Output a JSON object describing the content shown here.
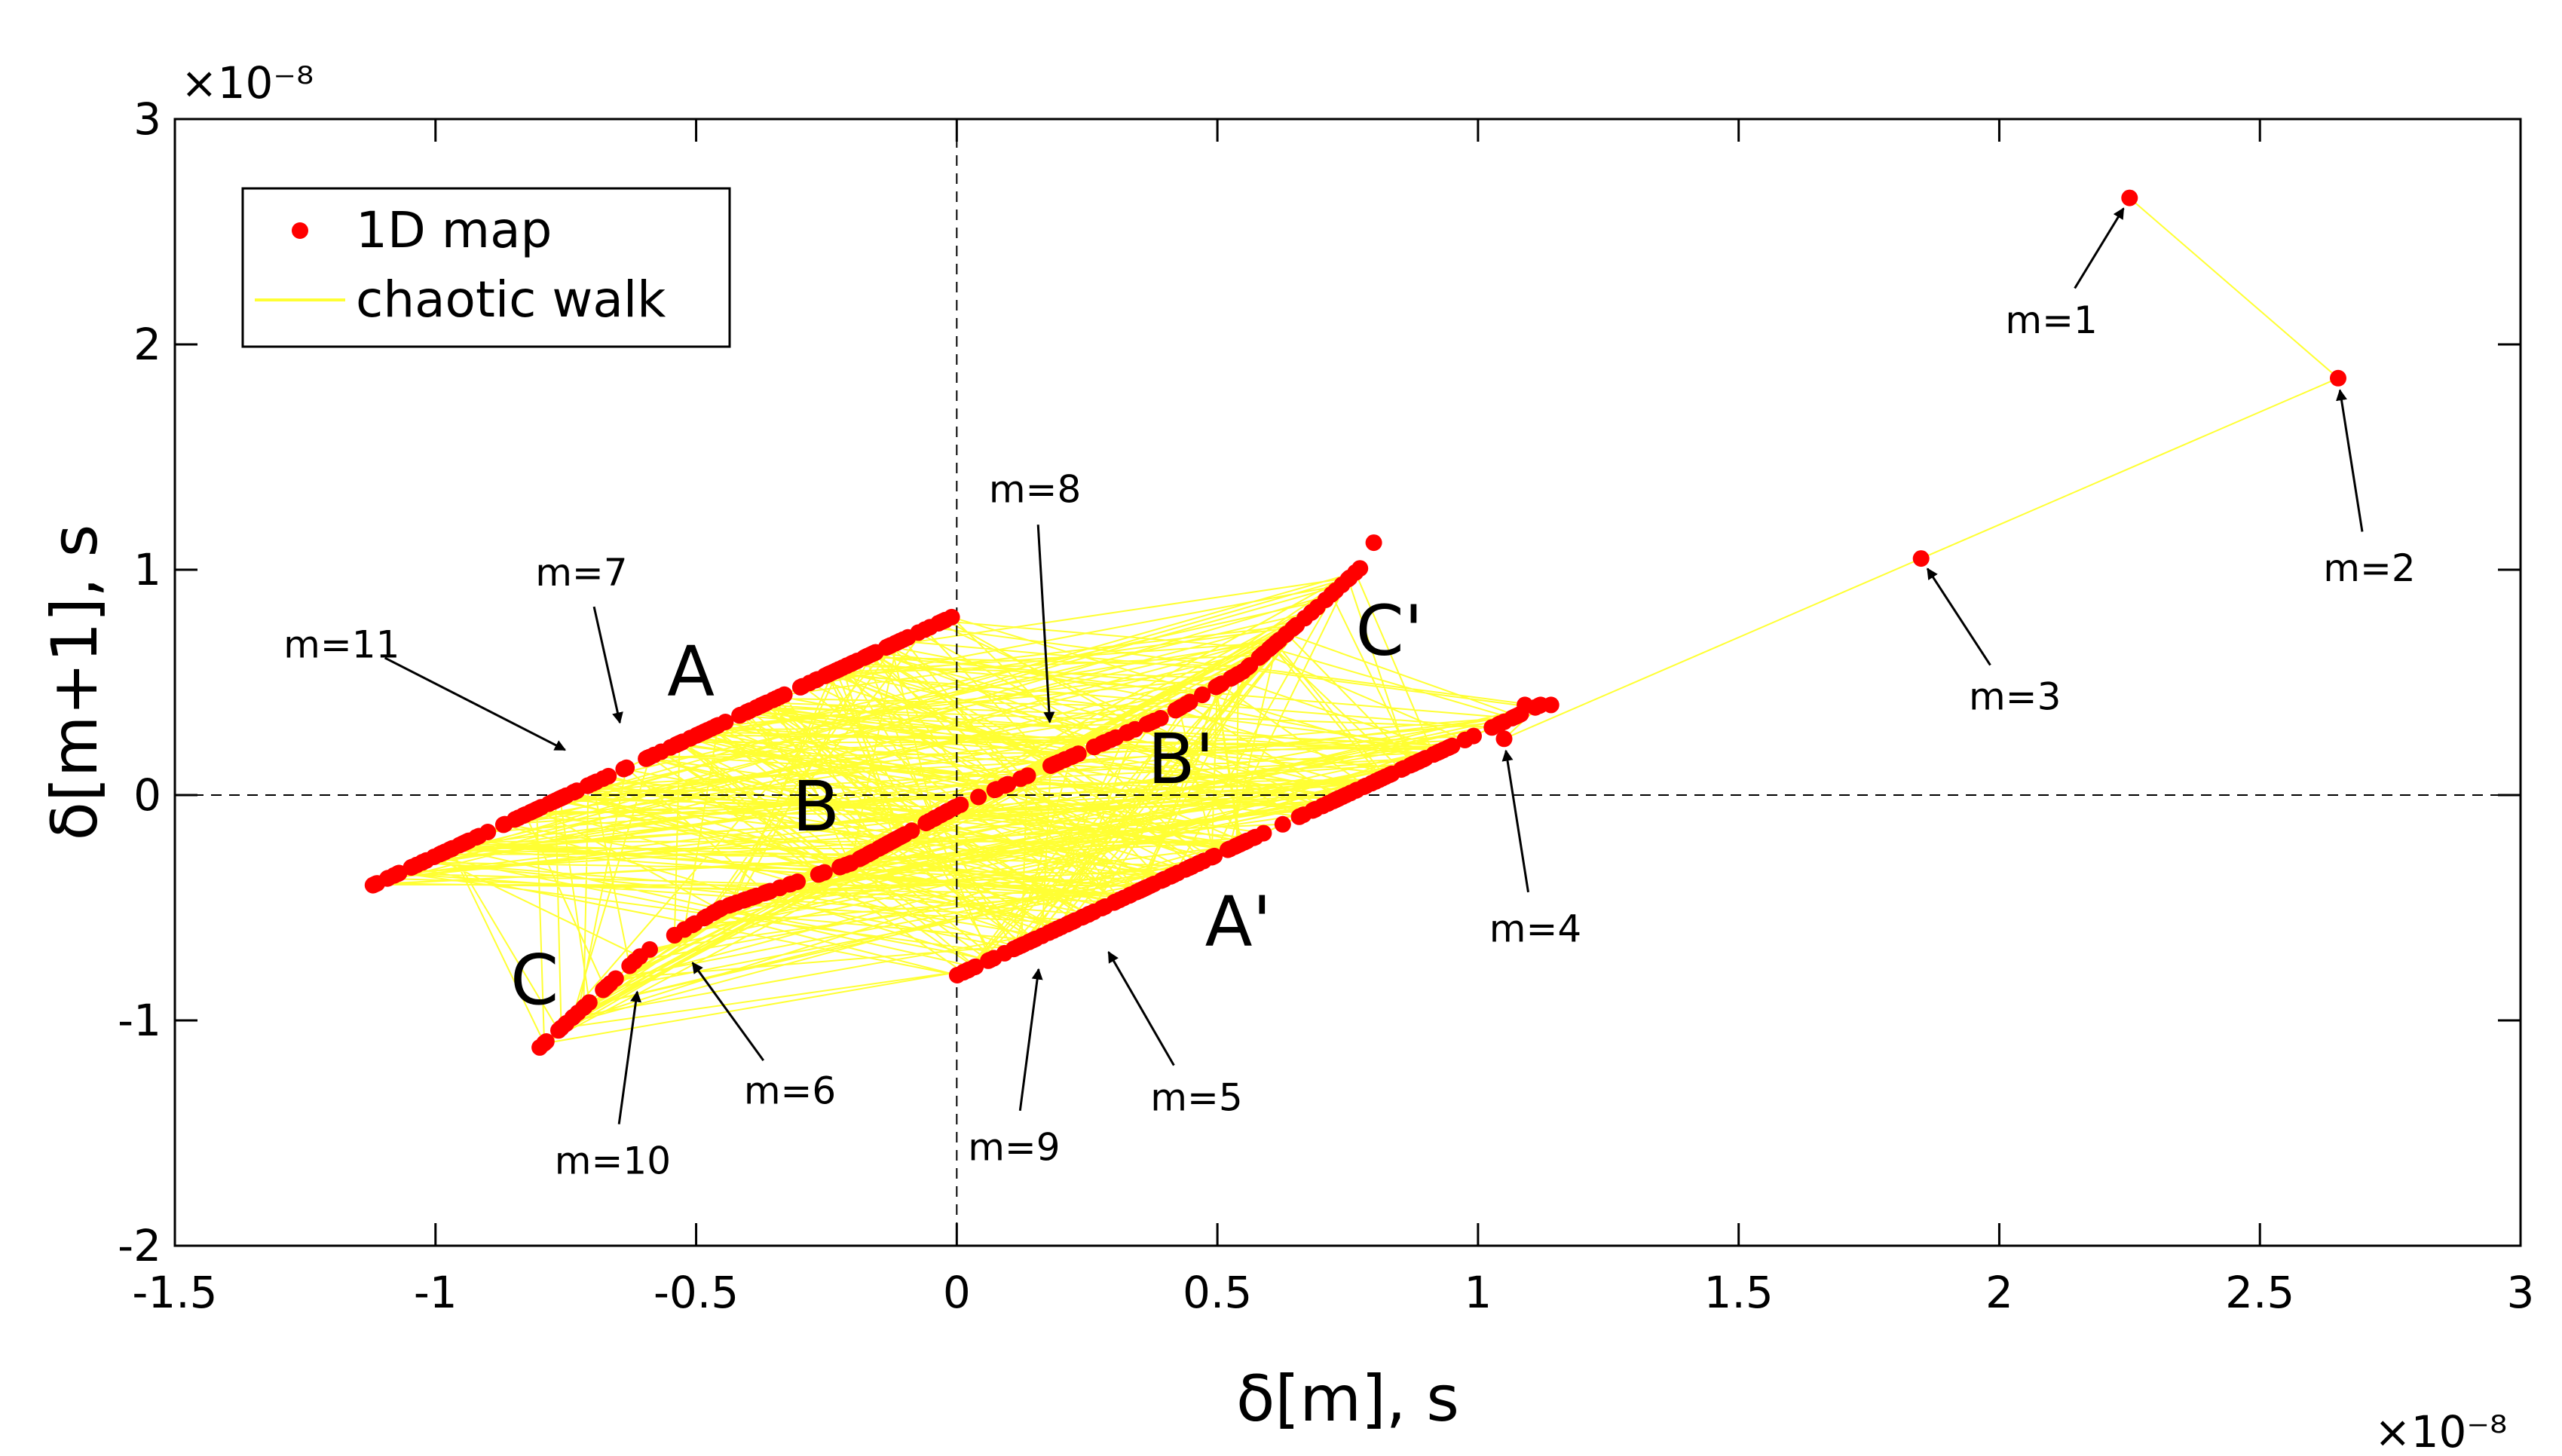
{
  "chart_data": {
    "type": "scatter",
    "xlabel": "δ[m], s",
    "ylabel": "δ[m+1], s",
    "x_exponent_label": "×10⁻⁸",
    "y_exponent_label": "×10⁻⁸",
    "xlim": [
      -1.5,
      3
    ],
    "ylim": [
      -2,
      3
    ],
    "xticks": [
      -1.5,
      -1,
      -0.5,
      0,
      0.5,
      1,
      1.5,
      2,
      2.5,
      3
    ],
    "yticks": [
      -2,
      -1,
      0,
      1,
      2,
      3
    ],
    "xtick_labels": [
      "-1.5",
      "-1",
      "-0.5",
      "0",
      "0.5",
      "1",
      "1.5",
      "2",
      "2.5",
      "3"
    ],
    "ytick_labels": [
      "-2",
      "-1",
      "0",
      "1",
      "2",
      "3"
    ],
    "units_scale": 1e-08,
    "legend": {
      "placement": "top-left",
      "entries": [
        {
          "label": "1D map",
          "color": "#ff0000",
          "marker": "dot"
        },
        {
          "label": "chaotic walk",
          "color": "#ffff33",
          "marker": "line"
        }
      ]
    },
    "guides": {
      "x_zero": true,
      "y_zero": true,
      "style": "dashed"
    },
    "branches": [
      {
        "name": "A",
        "x_range": [
          -1.12,
          0.0
        ],
        "y_start": -0.4,
        "y_end": 0.8,
        "shape": "linear"
      },
      {
        "name": "B",
        "x_range": [
          -0.8,
          0.78
        ],
        "shape": "s-curve",
        "points": [
          [
            -0.8,
            -1.12
          ],
          [
            -0.6,
            -0.7
          ],
          [
            -0.45,
            -0.5
          ],
          [
            -0.2,
            -0.3
          ],
          [
            0.0,
            -0.05
          ],
          [
            0.2,
            0.15
          ],
          [
            0.4,
            0.35
          ],
          [
            0.55,
            0.55
          ],
          [
            0.7,
            0.85
          ],
          [
            0.78,
            1.02
          ]
        ]
      },
      {
        "name": "A'",
        "x_range": [
          0.0,
          1.12
        ],
        "y_start": -0.8,
        "y_end": 0.4,
        "shape": "linear"
      }
    ],
    "transient": [
      [
        2.25,
        2.65
      ],
      [
        2.65,
        1.85
      ],
      [
        1.85,
        1.05
      ],
      [
        1.05,
        0.25
      ],
      [
        1.12,
        0.4
      ]
    ],
    "series": [
      {
        "name": "1D map",
        "kind": "scatter",
        "color": "#ff0000"
      },
      {
        "name": "chaotic walk",
        "kind": "line",
        "color": "#ffff33"
      }
    ],
    "region_labels": [
      {
        "text": "A",
        "x": -0.51,
        "y": 0.55
      },
      {
        "text": "B",
        "x": -0.27,
        "y": -0.05
      },
      {
        "text": "B'",
        "x": 0.43,
        "y": 0.16
      },
      {
        "text": "C",
        "x": -0.81,
        "y": -0.82
      },
      {
        "text": "C'",
        "x": 0.83,
        "y": 0.73
      },
      {
        "text": "A'",
        "x": 0.54,
        "y": -0.56
      }
    ],
    "annotations": [
      {
        "label": "m=1",
        "text_x": 2.1,
        "text_y": 2.05,
        "point_x": 2.25,
        "point_y": 2.65
      },
      {
        "label": "m=2",
        "text_x": 2.71,
        "text_y": 0.95,
        "point_x": 2.65,
        "point_y": 1.85
      },
      {
        "label": "m=3",
        "text_x": 2.03,
        "text_y": 0.38,
        "point_x": 1.85,
        "point_y": 1.05
      },
      {
        "label": "m=4",
        "text_x": 1.11,
        "text_y": -0.65,
        "point_x": 1.05,
        "point_y": 0.25
      },
      {
        "label": "m=5",
        "text_x": 0.46,
        "text_y": -1.4,
        "point_x": 0.28,
        "point_y": -0.65
      },
      {
        "label": "m=6",
        "text_x": -0.32,
        "text_y": -1.37,
        "point_x": -0.52,
        "point_y": -0.7
      },
      {
        "label": "m=7",
        "text_x": -0.72,
        "text_y": 0.93,
        "point_x": -0.64,
        "point_y": 0.27
      },
      {
        "label": "m=8",
        "text_x": 0.15,
        "text_y": 1.3,
        "point_x": 0.18,
        "point_y": 0.27
      },
      {
        "label": "m=9",
        "text_x": 0.11,
        "text_y": -1.62,
        "point_x": 0.16,
        "point_y": -0.72
      },
      {
        "label": "m=10",
        "text_x": -0.66,
        "text_y": -1.68,
        "point_x": -0.61,
        "point_y": -0.82
      },
      {
        "label": "m=11",
        "text_x": -1.18,
        "text_y": 0.61,
        "point_x": -0.73,
        "point_y": 0.18
      }
    ]
  }
}
